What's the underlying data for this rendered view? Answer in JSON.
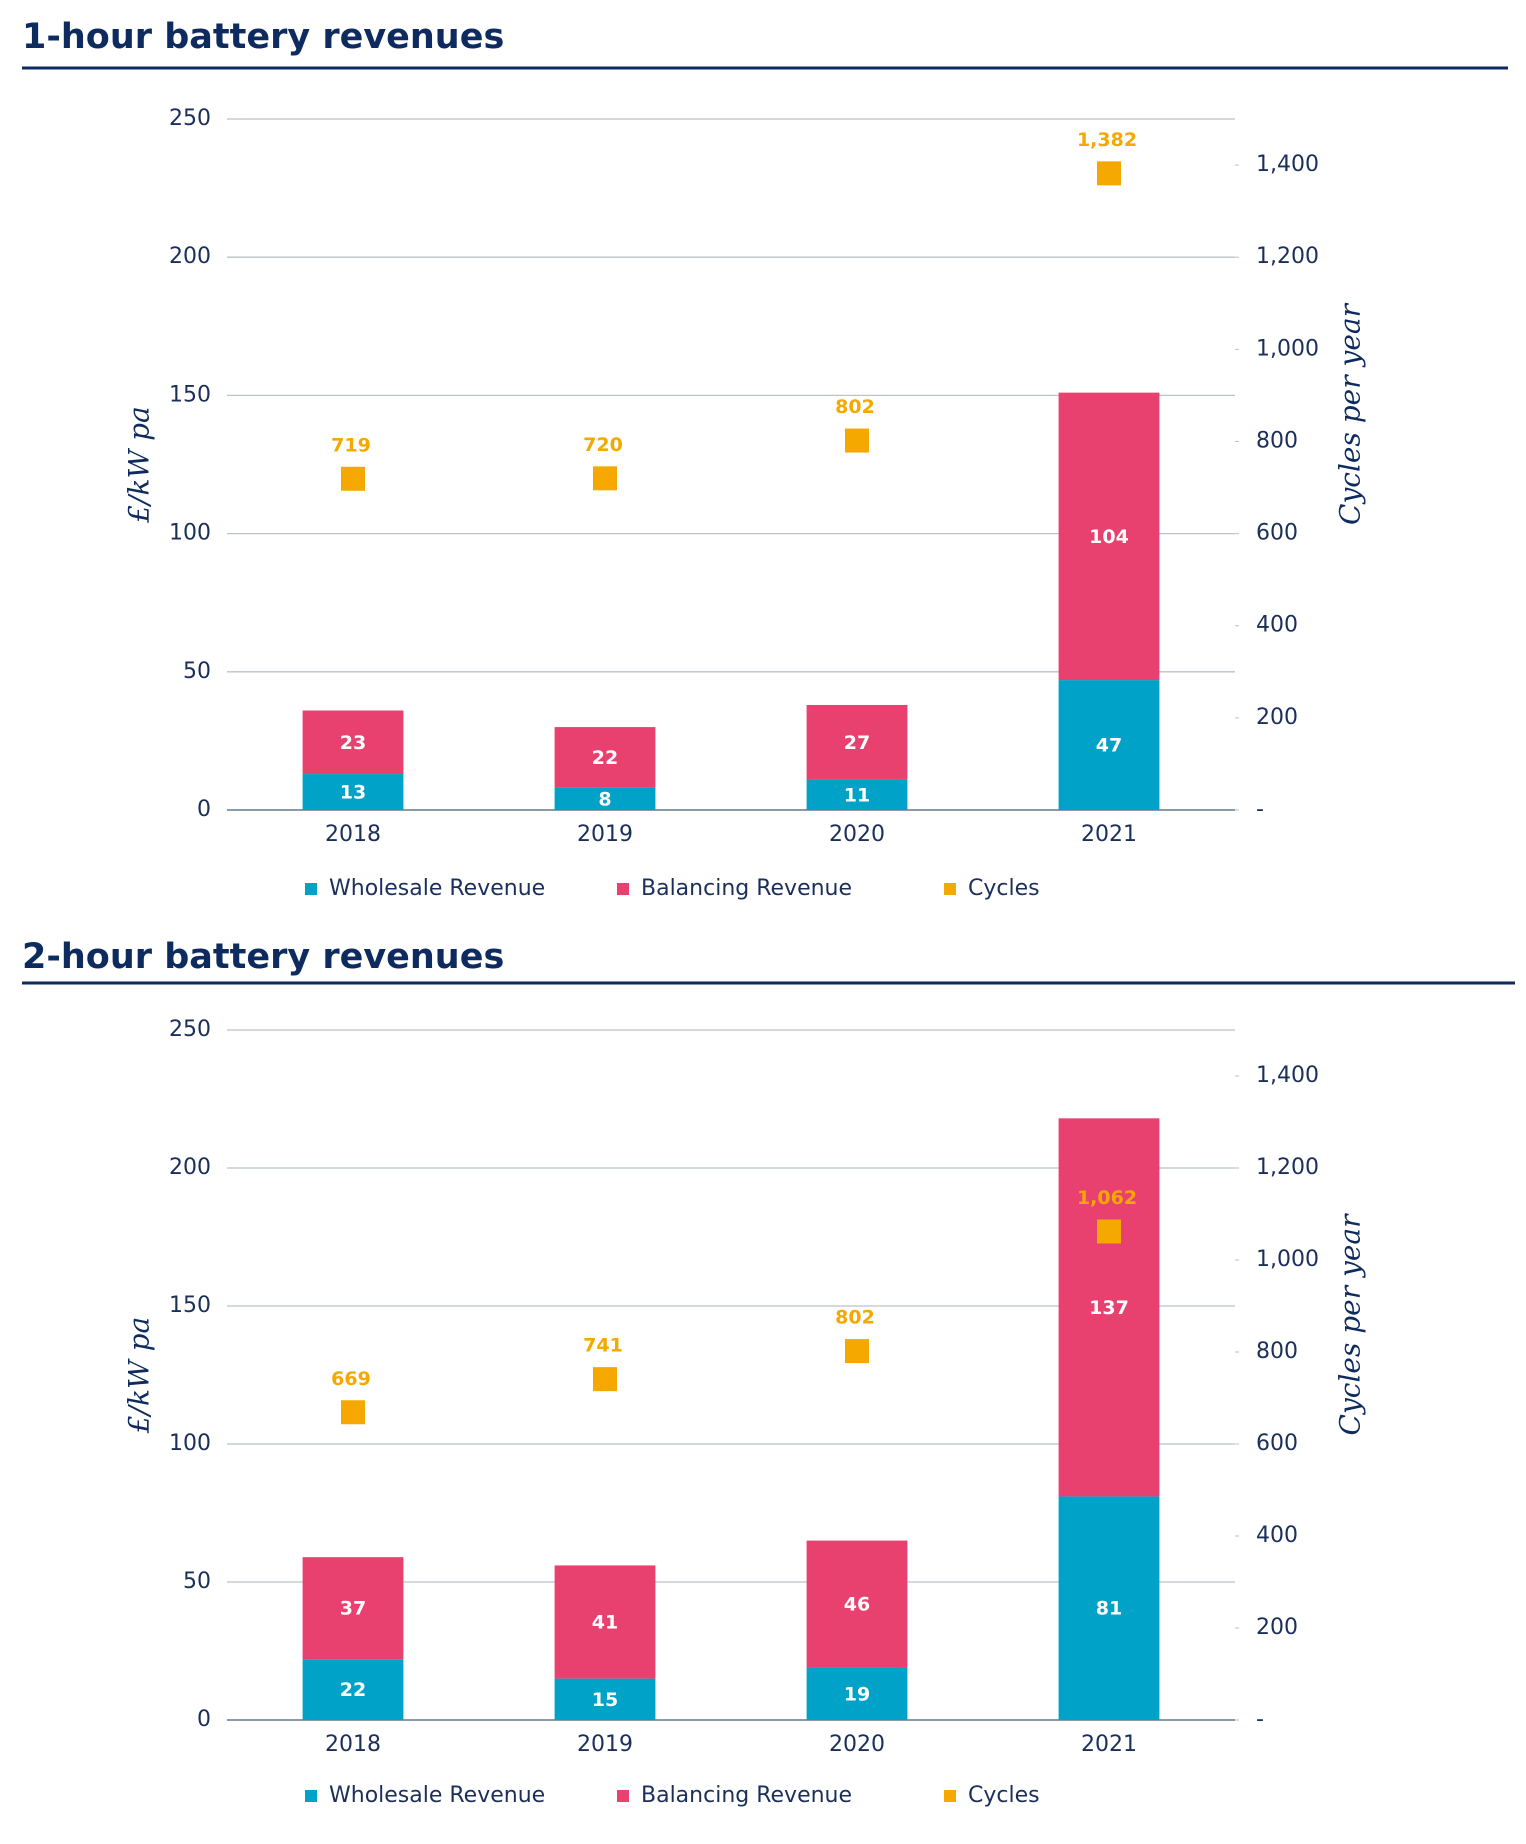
{
  "chart_data": [
    {
      "type": "bar",
      "stacked": true,
      "title": "1-hour battery revenues",
      "y_label": "£/kW pa",
      "y2_label": "Cycles per year",
      "categories": [
        "2018",
        "2019",
        "2020",
        "2021"
      ],
      "series": [
        {
          "name": "Wholesale Revenue",
          "color": "#00a3c7",
          "values": [
            13,
            8,
            11,
            47
          ]
        },
        {
          "name": "Balancing Revenue",
          "color": "#e8416f",
          "values": [
            23,
            22,
            27,
            104
          ]
        },
        {
          "name": "Cycles",
          "type": "scatter",
          "axis": "y2",
          "color": "#f5a800",
          "values": [
            719,
            720,
            802,
            1382
          ],
          "value_labels": [
            "719",
            "720",
            "802",
            "1,382"
          ]
        }
      ],
      "ylim": [
        0,
        250
      ],
      "yticks": [
        0,
        50,
        100,
        150,
        200,
        250
      ],
      "y2lim": [
        0,
        1500
      ],
      "y2ticks": [
        {
          "value": 0,
          "label": "-"
        },
        200,
        400,
        600,
        800,
        {
          "value": 1000,
          "label": "1,000"
        },
        {
          "value": 1200,
          "label": "1,200"
        },
        {
          "value": 1400,
          "label": "1,400"
        }
      ],
      "grid": true,
      "legend": "bottom"
    },
    {
      "type": "bar",
      "stacked": true,
      "title": "2-hour battery revenues",
      "y_label": "£/kW pa",
      "y2_label": "Cycles per year",
      "categories": [
        "2018",
        "2019",
        "2020",
        "2021"
      ],
      "series": [
        {
          "name": "Wholesale Revenue",
          "color": "#00a3c7",
          "values": [
            22,
            15,
            19,
            81
          ]
        },
        {
          "name": "Balancing Revenue",
          "color": "#e8416f",
          "values": [
            37,
            41,
            46,
            137
          ]
        },
        {
          "name": "Cycles",
          "type": "scatter",
          "axis": "y2",
          "color": "#f5a800",
          "values": [
            669,
            741,
            802,
            1062
          ],
          "value_labels": [
            "669",
            "741",
            "802",
            "1,062"
          ]
        }
      ],
      "ylim": [
        0,
        250
      ],
      "yticks": [
        0,
        50,
        100,
        150,
        200,
        250
      ],
      "y2lim": [
        0,
        1500
      ],
      "y2ticks": [
        {
          "value": 0,
          "label": "-"
        },
        200,
        400,
        600,
        800,
        {
          "value": 1000,
          "label": "1,000"
        },
        {
          "value": 1200,
          "label": "1,200"
        },
        {
          "value": 1400,
          "label": "1,400"
        }
      ],
      "grid": true,
      "legend": "bottom"
    }
  ]
}
